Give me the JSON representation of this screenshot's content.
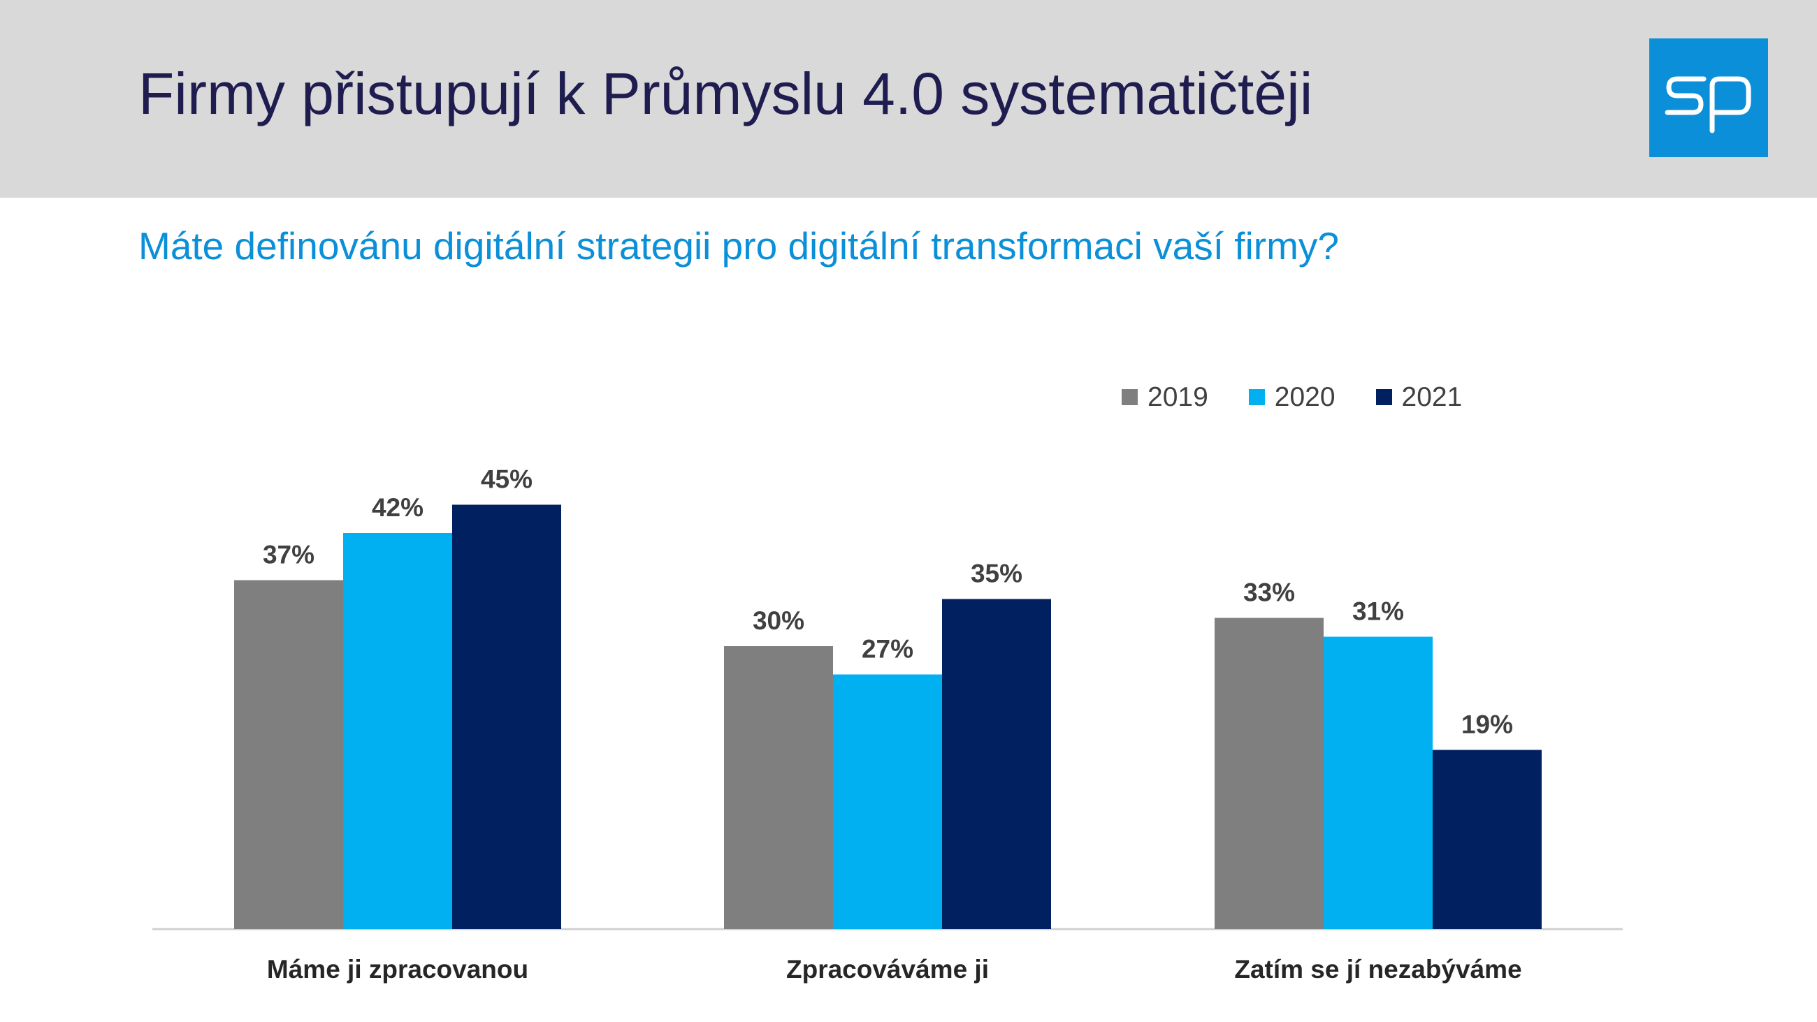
{
  "header": {
    "title": "Firmy přistupují k Průmyslu 4.0 systematičtěji",
    "logo_text": "sp",
    "logo_color": "#0a8fd8"
  },
  "subtitle": "Máte definovánu digitální strategii pro digitální transformaci vaší firmy?",
  "chart_data": {
    "type": "bar",
    "categories": [
      "Máme ji zpracovanou",
      "Zpracováváme ji",
      "Zatím se jí nezabýváme"
    ],
    "series": [
      {
        "name": "2019",
        "values": [
          37,
          30,
          33
        ],
        "color": "#7f7f7f"
      },
      {
        "name": "2020",
        "values": [
          42,
          27,
          31
        ],
        "color": "#00b0f0"
      },
      {
        "name": "2021",
        "values": [
          45,
          35,
          19
        ],
        "color": "#002060"
      }
    ],
    "value_suffix": "%",
    "ylim": [
      0,
      55
    ],
    "grid": false,
    "legend_position": "top-right",
    "title": "",
    "xlabel": "",
    "ylabel": ""
  }
}
